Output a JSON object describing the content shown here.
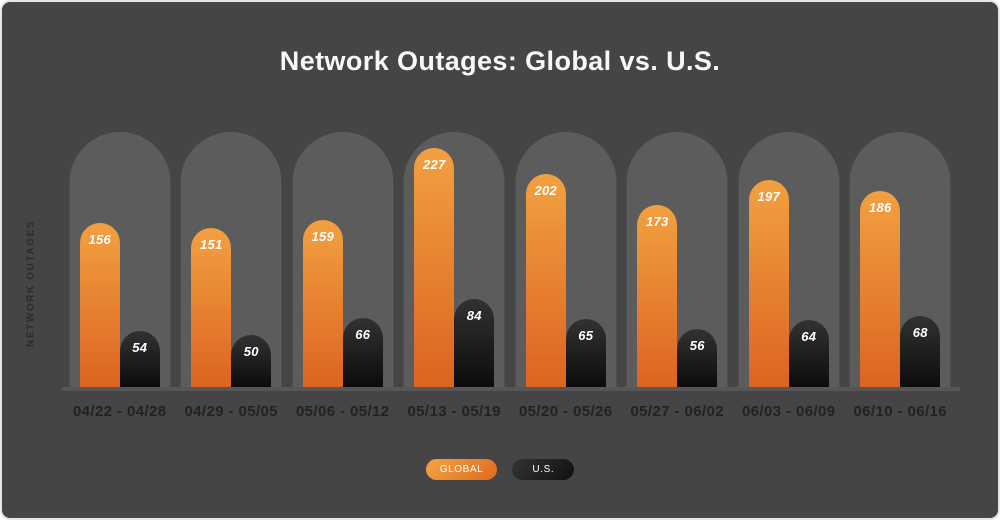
{
  "title": "Network Outages: Global vs. U.S.",
  "chart_data": {
    "type": "bar",
    "title": "Network Outages: Global vs. U.S.",
    "ylabel": "NETWORK OUTAGES",
    "xlabel": "",
    "categories": [
      "04/22 - 04/28",
      "04/29 - 05/05",
      "05/06 - 05/12",
      "05/13 - 05/19",
      "05/20 - 05/26",
      "05/27 - 06/02",
      "06/03 - 06/09",
      "06/10 - 06/16"
    ],
    "series": [
      {
        "name": "GLOBAL",
        "values": [
          156,
          151,
          159,
          227,
          202,
          173,
          197,
          186
        ],
        "color_top": "#F2A041",
        "color_bottom": "#DC6420"
      },
      {
        "name": "U.S.",
        "values": [
          54,
          50,
          66,
          84,
          65,
          56,
          64,
          68
        ],
        "color_top": "#323232",
        "color_bottom": "#0B0B0B"
      }
    ],
    "ylim": [
      0,
      242
    ],
    "grid": false,
    "legend_position": "bottom"
  },
  "theme": {
    "card_background": "#454545",
    "track_pill_color": "#5c5c5c",
    "baseline_color": "#565656",
    "title_color": "#f7f7f7",
    "axis_label_color": "#2b2b2b",
    "x_label_color": "#222222",
    "value_label_color": "#ffffff",
    "legend_global_gradient_top": "#F2A444",
    "legend_global_gradient_bottom": "#E06A1F",
    "legend_us_gradient_top": "#343434",
    "legend_us_gradient_bottom": "#101010"
  }
}
